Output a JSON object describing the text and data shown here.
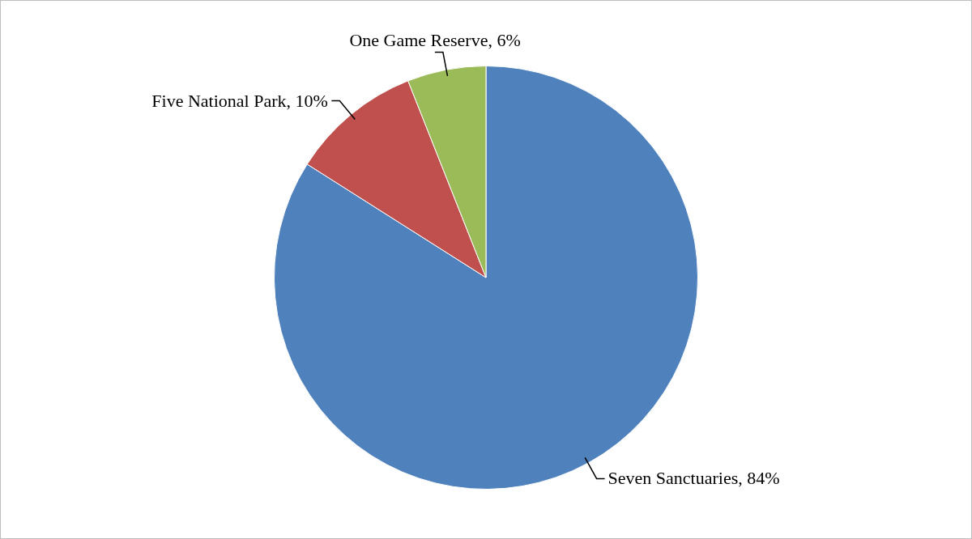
{
  "chart_data": {
    "type": "pie",
    "categories": [
      "Seven Sanctuaries",
      "Five National Park",
      "One Game Reserve"
    ],
    "values": [
      84,
      10,
      6
    ],
    "colors": [
      "#4f81bd",
      "#c0504d",
      "#9bbb59"
    ],
    "value_labels": [
      "84%",
      "10%",
      "6%"
    ],
    "legend": false
  }
}
